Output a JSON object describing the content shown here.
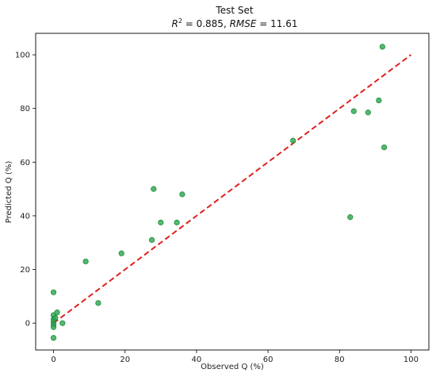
{
  "chart_data": {
    "type": "scatter",
    "title": "Test Set",
    "subtitle": {
      "r2_symbol": "R",
      "r2_sup": "2",
      "r2_value": " = 0.885, ",
      "rmse_symbol": "RMSE",
      "rmse_value": " = 11.61"
    },
    "xlabel": "Observed Q (%)",
    "ylabel": "Predicted Q (%)",
    "xlim": [
      -5,
      105
    ],
    "ylim": [
      -10,
      108
    ],
    "x_ticks": [
      0,
      20,
      40,
      60,
      80,
      100
    ],
    "y_ticks": [
      0,
      20,
      40,
      60,
      80,
      100
    ],
    "grid": false,
    "reference_line": {
      "x": [
        0,
        100
      ],
      "y": [
        0,
        100
      ],
      "style": "dashed",
      "color": "#e0201c"
    },
    "point_color": "#2ca84f",
    "points": [
      {
        "x": 0,
        "y": 11.5
      },
      {
        "x": 0,
        "y": 3
      },
      {
        "x": 0,
        "y": 1.5
      },
      {
        "x": 0,
        "y": 0.5
      },
      {
        "x": 0,
        "y": -0.5
      },
      {
        "x": 0,
        "y": -1.5
      },
      {
        "x": 0,
        "y": -5.5
      },
      {
        "x": 0.5,
        "y": 2
      },
      {
        "x": 1,
        "y": 4
      },
      {
        "x": 2.5,
        "y": 0
      },
      {
        "x": 9,
        "y": 23
      },
      {
        "x": 12.5,
        "y": 7.5
      },
      {
        "x": 19,
        "y": 26
      },
      {
        "x": 27.5,
        "y": 31
      },
      {
        "x": 28,
        "y": 50
      },
      {
        "x": 30,
        "y": 37.5
      },
      {
        "x": 34.5,
        "y": 37.5
      },
      {
        "x": 36,
        "y": 48
      },
      {
        "x": 67,
        "y": 68
      },
      {
        "x": 83,
        "y": 39.5
      },
      {
        "x": 84,
        "y": 79
      },
      {
        "x": 88,
        "y": 78.5
      },
      {
        "x": 91,
        "y": 83
      },
      {
        "x": 92,
        "y": 103
      },
      {
        "x": 92.5,
        "y": 65.5
      }
    ]
  }
}
